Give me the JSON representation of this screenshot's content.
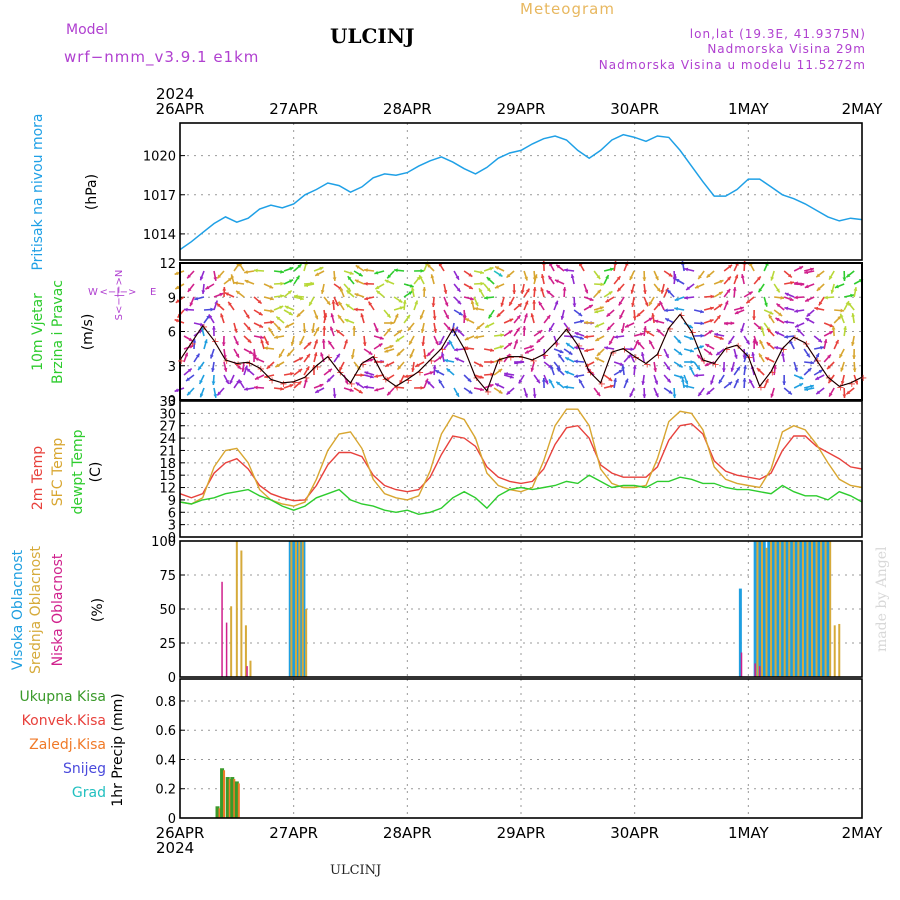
{
  "header": {
    "model_label": "Model",
    "model_name": "wrf−nmm_v3.9.1  e1km",
    "station_title": "ULCINJ",
    "meteogram_label": "Meteogram",
    "lonlat": "lon,lat (19.3E, 41.9375N)",
    "altitude": "Nadmorska Visina 29m",
    "model_altitude": "Nadmorska Visina u modelu 11.5272m",
    "year_top": "2024",
    "year_bottom": "2024",
    "footer_station": "ULCINJ",
    "credit": "made by Angel"
  },
  "colors": {
    "pressure": "#1fa0e6",
    "temp2m": "#e8413c",
    "sfc_temp": "#d8a630",
    "dewpt": "#2ecc2e",
    "high_cloud": "#1f9fe0",
    "mid_cloud": "#d6aa3a",
    "low_cloud": "#d0208c",
    "precip_total": "#3a9a2a",
    "precip_conv": "#e8413c",
    "precip_strat": "#f07a28",
    "snow": "#4a4adc",
    "hail": "#22c0c0",
    "label_purple": "#b040d0",
    "accent_orange": "#e8b860"
  },
  "chart_data": [
    {
      "id": "pressure",
      "type": "line",
      "ylabel_lines": [
        "Pritisak na nivou mora",
        "(hPa)"
      ],
      "yticks": [
        1014,
        1017,
        1020
      ],
      "ylim": [
        1012,
        1022.5
      ],
      "x_days": [
        "26APR",
        "27APR",
        "28APR",
        "29APR",
        "30APR",
        "1MAY",
        "2MAY"
      ],
      "series": [
        {
          "name": "Pritisak na nivou mora",
          "x": [
            0,
            0.1,
            0.2,
            0.3,
            0.4,
            0.5,
            0.6,
            0.7,
            0.8,
            0.9,
            1.0,
            1.1,
            1.2,
            1.3,
            1.4,
            1.5,
            1.6,
            1.7,
            1.8,
            1.9,
            2.0,
            2.1,
            2.2,
            2.3,
            2.4,
            2.5,
            2.6,
            2.7,
            2.8,
            2.9,
            3.0,
            3.1,
            3.2,
            3.3,
            3.4,
            3.5,
            3.6,
            3.7,
            3.8,
            3.9,
            4.0,
            4.1,
            4.2,
            4.3,
            4.4,
            4.5,
            4.6,
            4.7,
            4.8,
            4.9,
            5.0,
            5.1,
            5.2,
            5.3,
            5.4,
            5.5,
            5.6,
            5.7,
            5.8,
            5.9,
            6.0
          ],
          "values": [
            1012.8,
            1013.4,
            1014.1,
            1014.8,
            1015.3,
            1014.9,
            1015.2,
            1015.9,
            1016.2,
            1016.0,
            1016.3,
            1017.0,
            1017.4,
            1017.9,
            1017.7,
            1017.2,
            1017.6,
            1018.3,
            1018.6,
            1018.5,
            1018.7,
            1019.2,
            1019.6,
            1019.9,
            1019.5,
            1019.0,
            1018.6,
            1019.1,
            1019.8,
            1020.2,
            1020.4,
            1020.9,
            1021.3,
            1021.5,
            1021.2,
            1020.4,
            1019.8,
            1020.4,
            1021.2,
            1021.6,
            1021.4,
            1021.1,
            1021.5,
            1021.4,
            1020.4,
            1019.2,
            1018.0,
            1016.9,
            1016.9,
            1017.4,
            1018.2,
            1018.2,
            1017.6,
            1017.0,
            1016.7,
            1016.3,
            1015.8,
            1015.3,
            1015.0,
            1015.2,
            1015.1
          ]
        }
      ]
    },
    {
      "id": "wind",
      "type": "line",
      "ylabel_lines": [
        "10m Vjetar",
        "Brzina i Pravac",
        "(m/s)"
      ],
      "compass": [
        "W",
        "<−|−>",
        "E",
        "S<−|−>N"
      ],
      "yticks": [
        0,
        3,
        6,
        9,
        12
      ],
      "ylim": [
        0,
        12
      ],
      "series": [
        {
          "name": "10m Vjetar Brzina",
          "x": [
            0,
            0.1,
            0.2,
            0.3,
            0.4,
            0.5,
            0.6,
            0.7,
            0.8,
            0.9,
            1.0,
            1.1,
            1.2,
            1.3,
            1.4,
            1.5,
            1.6,
            1.7,
            1.8,
            1.9,
            2.0,
            2.1,
            2.2,
            2.3,
            2.4,
            2.5,
            2.6,
            2.7,
            2.8,
            2.9,
            3.0,
            3.1,
            3.2,
            3.3,
            3.4,
            3.5,
            3.6,
            3.7,
            3.8,
            3.9,
            4.0,
            4.1,
            4.2,
            4.3,
            4.4,
            4.5,
            4.6,
            4.7,
            4.8,
            4.9,
            5.0,
            5.1,
            5.2,
            5.3,
            5.4,
            5.5,
            5.6,
            5.7,
            5.8,
            5.9,
            6.0
          ],
          "values": [
            3.5,
            5.0,
            6.5,
            5.2,
            3.5,
            3.2,
            3.3,
            2.8,
            1.8,
            1.5,
            1.6,
            2.0,
            3.0,
            3.8,
            2.5,
            1.5,
            3.2,
            3.8,
            1.9,
            1.2,
            1.8,
            2.5,
            3.5,
            4.5,
            6.2,
            4.5,
            2.0,
            0.8,
            3.5,
            3.8,
            3.8,
            3.5,
            4.0,
            5.0,
            6.2,
            4.8,
            2.5,
            1.5,
            4.2,
            4.5,
            3.8,
            3.2,
            4.0,
            6.3,
            7.5,
            6.0,
            3.5,
            3.2,
            4.5,
            4.8,
            3.8,
            1.2,
            2.5,
            4.5,
            5.5,
            5.0,
            3.5,
            2.0,
            1.2,
            1.5,
            2.0
          ]
        }
      ]
    },
    {
      "id": "temperature",
      "type": "line",
      "ylabel_lines": [
        "2m Temp",
        "SFC Temp",
        "dewpt Temp",
        "(C)"
      ],
      "yticks": [
        0,
        3,
        6,
        9,
        12,
        15,
        18,
        21,
        24,
        27,
        30,
        33
      ],
      "ylim": [
        0,
        33
      ],
      "series": [
        {
          "name": "2m Temp",
          "x": [
            0,
            0.1,
            0.2,
            0.3,
            0.4,
            0.5,
            0.6,
            0.7,
            0.8,
            0.9,
            1.0,
            1.1,
            1.2,
            1.3,
            1.4,
            1.5,
            1.6,
            1.7,
            1.8,
            1.9,
            2.0,
            2.1,
            2.2,
            2.3,
            2.4,
            2.5,
            2.6,
            2.7,
            2.8,
            2.9,
            3.0,
            3.1,
            3.2,
            3.3,
            3.4,
            3.5,
            3.6,
            3.7,
            3.8,
            3.9,
            4.0,
            4.1,
            4.2,
            4.3,
            4.4,
            4.5,
            4.6,
            4.7,
            4.8,
            4.9,
            5.0,
            5.1,
            5.2,
            5.3,
            5.4,
            5.5,
            5.6,
            5.7,
            5.8,
            5.9,
            6.0
          ],
          "values": [
            10.5,
            9.5,
            10.5,
            15.5,
            18.0,
            19.0,
            16.5,
            12.5,
            10.5,
            9.5,
            8.8,
            9.0,
            12.5,
            17.5,
            20.5,
            20.5,
            19.5,
            15.0,
            12.5,
            11.5,
            11.0,
            11.5,
            14.5,
            20.0,
            24.5,
            24.0,
            22.0,
            17.0,
            14.5,
            13.5,
            13.0,
            13.5,
            16.5,
            22.5,
            26.5,
            27.0,
            24.0,
            17.5,
            15.5,
            14.5,
            14.5,
            14.5,
            17.0,
            23.5,
            27.0,
            27.5,
            25.0,
            18.5,
            16.0,
            15.0,
            14.5,
            14.0,
            15.5,
            21.0,
            24.5,
            24.5,
            22.0,
            20.5,
            19.0,
            17.0,
            16.5
          ]
        },
        {
          "name": "SFC Temp",
          "x": [
            0,
            0.1,
            0.2,
            0.3,
            0.4,
            0.5,
            0.6,
            0.7,
            0.8,
            0.9,
            1.0,
            1.1,
            1.2,
            1.3,
            1.4,
            1.5,
            1.6,
            1.7,
            1.8,
            1.9,
            2.0,
            2.1,
            2.2,
            2.3,
            2.4,
            2.5,
            2.6,
            2.7,
            2.8,
            2.9,
            3.0,
            3.1,
            3.2,
            3.3,
            3.4,
            3.5,
            3.6,
            3.7,
            3.8,
            3.9,
            4.0,
            4.1,
            4.2,
            4.3,
            4.4,
            4.5,
            4.6,
            4.7,
            4.8,
            4.9,
            5.0,
            5.1,
            5.2,
            5.3,
            5.4,
            5.5,
            5.6,
            5.7,
            5.8,
            5.9,
            6.0
          ],
          "values": [
            8.5,
            8.0,
            9.5,
            17.0,
            21.0,
            21.5,
            18.0,
            11.5,
            9.0,
            8.0,
            7.5,
            8.5,
            14.0,
            21.0,
            25.0,
            25.5,
            21.5,
            14.0,
            10.5,
            9.5,
            9.0,
            10.0,
            16.0,
            25.0,
            29.5,
            28.5,
            24.0,
            15.5,
            12.5,
            11.5,
            11.0,
            12.0,
            18.5,
            27.0,
            31.0,
            31.0,
            27.0,
            16.5,
            13.0,
            12.0,
            12.0,
            12.5,
            19.0,
            28.0,
            30.5,
            30.0,
            26.0,
            17.0,
            14.0,
            13.0,
            12.5,
            12.0,
            16.5,
            25.5,
            27.0,
            26.0,
            22.5,
            18.0,
            14.0,
            12.5,
            12.0
          ]
        },
        {
          "name": "dewpt Temp",
          "x": [
            0,
            0.1,
            0.2,
            0.3,
            0.4,
            0.5,
            0.6,
            0.7,
            0.8,
            0.9,
            1.0,
            1.1,
            1.2,
            1.3,
            1.4,
            1.5,
            1.6,
            1.7,
            1.8,
            1.9,
            2.0,
            2.1,
            2.2,
            2.3,
            2.4,
            2.5,
            2.6,
            2.7,
            2.8,
            2.9,
            3.0,
            3.1,
            3.2,
            3.3,
            3.4,
            3.5,
            3.6,
            3.7,
            3.8,
            3.9,
            4.0,
            4.1,
            4.2,
            4.3,
            4.4,
            4.5,
            4.6,
            4.7,
            4.8,
            4.9,
            5.0,
            5.1,
            5.2,
            5.3,
            5.4,
            5.5,
            5.6,
            5.7,
            5.8,
            5.9,
            6.0
          ],
          "values": [
            8.5,
            8.0,
            9.0,
            9.5,
            10.5,
            11.0,
            11.5,
            10.0,
            9.0,
            7.5,
            6.5,
            7.5,
            9.5,
            10.5,
            11.5,
            9.0,
            8.0,
            7.5,
            6.5,
            6.0,
            6.5,
            5.5,
            6.0,
            7.0,
            9.5,
            11.0,
            9.5,
            7.0,
            10.0,
            11.5,
            12.0,
            11.5,
            12.0,
            12.5,
            13.5,
            13.0,
            15.0,
            13.5,
            12.0,
            12.5,
            12.5,
            12.0,
            13.5,
            13.5,
            14.5,
            14.0,
            13.0,
            13.0,
            12.0,
            11.5,
            11.5,
            11.0,
            10.5,
            12.5,
            11.0,
            10.0,
            10.0,
            9.0,
            11.0,
            10.0,
            8.5
          ]
        }
      ]
    },
    {
      "id": "clouds",
      "type": "bar",
      "ylabel_lines": [
        "Visoka Oblacnost",
        "Srednja Oblacnost",
        "Niska Oblacnost",
        "(%)"
      ],
      "yticks": [
        0,
        25,
        50,
        75,
        100
      ],
      "ylim": [
        0,
        100
      ],
      "series": [
        {
          "name": "Visoka Oblacnost",
          "x": [
            0.97,
            0.99,
            1.01,
            1.03,
            1.06,
            1.09,
            4.93,
            5.06,
            5.1,
            5.14,
            5.18,
            5.22,
            5.26,
            5.3,
            5.34,
            5.38,
            5.42,
            5.46,
            5.5,
            5.54,
            5.58,
            5.62,
            5.66,
            5.7
          ],
          "values": [
            100,
            100,
            100,
            100,
            100,
            100,
            65,
            100,
            100,
            100,
            100,
            100,
            100,
            100,
            100,
            100,
            100,
            100,
            100,
            100,
            100,
            100,
            100,
            100
          ]
        },
        {
          "name": "Srednja Oblacnost",
          "x": [
            0.45,
            0.5,
            0.54,
            0.58,
            0.62,
            0.98,
            1.02,
            1.05,
            1.08,
            1.11,
            5.08,
            5.12,
            5.16,
            5.2,
            5.24,
            5.28,
            5.32,
            5.36,
            5.4,
            5.44,
            5.48,
            5.52,
            5.56,
            5.6,
            5.64,
            5.68,
            5.72,
            5.76,
            5.8
          ],
          "values": [
            52,
            100,
            93,
            38,
            12,
            100,
            100,
            100,
            100,
            50,
            100,
            100,
            95,
            100,
            100,
            100,
            100,
            100,
            100,
            100,
            100,
            100,
            100,
            100,
            100,
            100,
            100,
            38,
            39
          ]
        },
        {
          "name": "Niska Oblacnost",
          "x": [
            0.37,
            0.41,
            0.59,
            4.94,
            5.06,
            5.1
          ],
          "values": [
            70,
            40,
            8,
            18,
            10,
            8
          ]
        }
      ]
    },
    {
      "id": "precip",
      "type": "bar",
      "ylabel_lines": [
        "1hr Precip (mm)"
      ],
      "legend": [
        "Ukupna Kisa",
        "Konvek.Kisa",
        "Zaledj.Kisa",
        "Snijeg",
        "Grad"
      ],
      "yticks": [
        0,
        0.2,
        0.4,
        0.6,
        0.8
      ],
      "ylim": [
        0,
        0.95
      ],
      "series": [
        {
          "name": "Ukupna Kisa",
          "x": [
            0.33,
            0.37,
            0.42,
            0.46,
            0.5
          ],
          "values": [
            0.08,
            0.34,
            0.28,
            0.28,
            0.25
          ]
        },
        {
          "name": "Konvek.Kisa",
          "x": [],
          "values": []
        },
        {
          "name": "Zaledj.Kisa",
          "x": [],
          "values": []
        },
        {
          "name": "Snijeg",
          "x": [],
          "values": []
        },
        {
          "name": "Grad",
          "x": [],
          "values": []
        }
      ]
    }
  ]
}
